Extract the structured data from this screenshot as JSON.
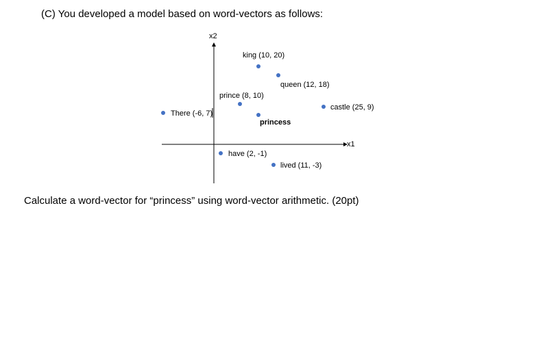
{
  "heading": "(C) You developed a model based on word-vectors as follows:",
  "question": "Calculate a word-vector for “princess” using word-vector arithmetic. (20pt)",
  "colors": {
    "point": "#4472c4",
    "axis": "#000000"
  },
  "chart_data": {
    "type": "scatter",
    "xlabel": "x1",
    "ylabel": "x2",
    "points": [
      {
        "name": "king",
        "label": "king (10, 20)",
        "x": 10,
        "y": 20
      },
      {
        "name": "queen",
        "label": "queen (12, 18)",
        "x": 12,
        "y": 18
      },
      {
        "name": "prince",
        "label": "prince (8, 10)",
        "x": 8,
        "y": 10
      },
      {
        "name": "princess",
        "label": "princess",
        "x": null,
        "y": null
      },
      {
        "name": "there",
        "label": "There (-6, 7)",
        "x": -6,
        "y": 7
      },
      {
        "name": "castle",
        "label": "castle (25, 9)",
        "x": 25,
        "y": 9
      },
      {
        "name": "have",
        "label": "have (2, -1)",
        "x": 2,
        "y": -1
      },
      {
        "name": "lived",
        "label": "lived (11, -3)",
        "x": 11,
        "y": -3
      }
    ]
  }
}
